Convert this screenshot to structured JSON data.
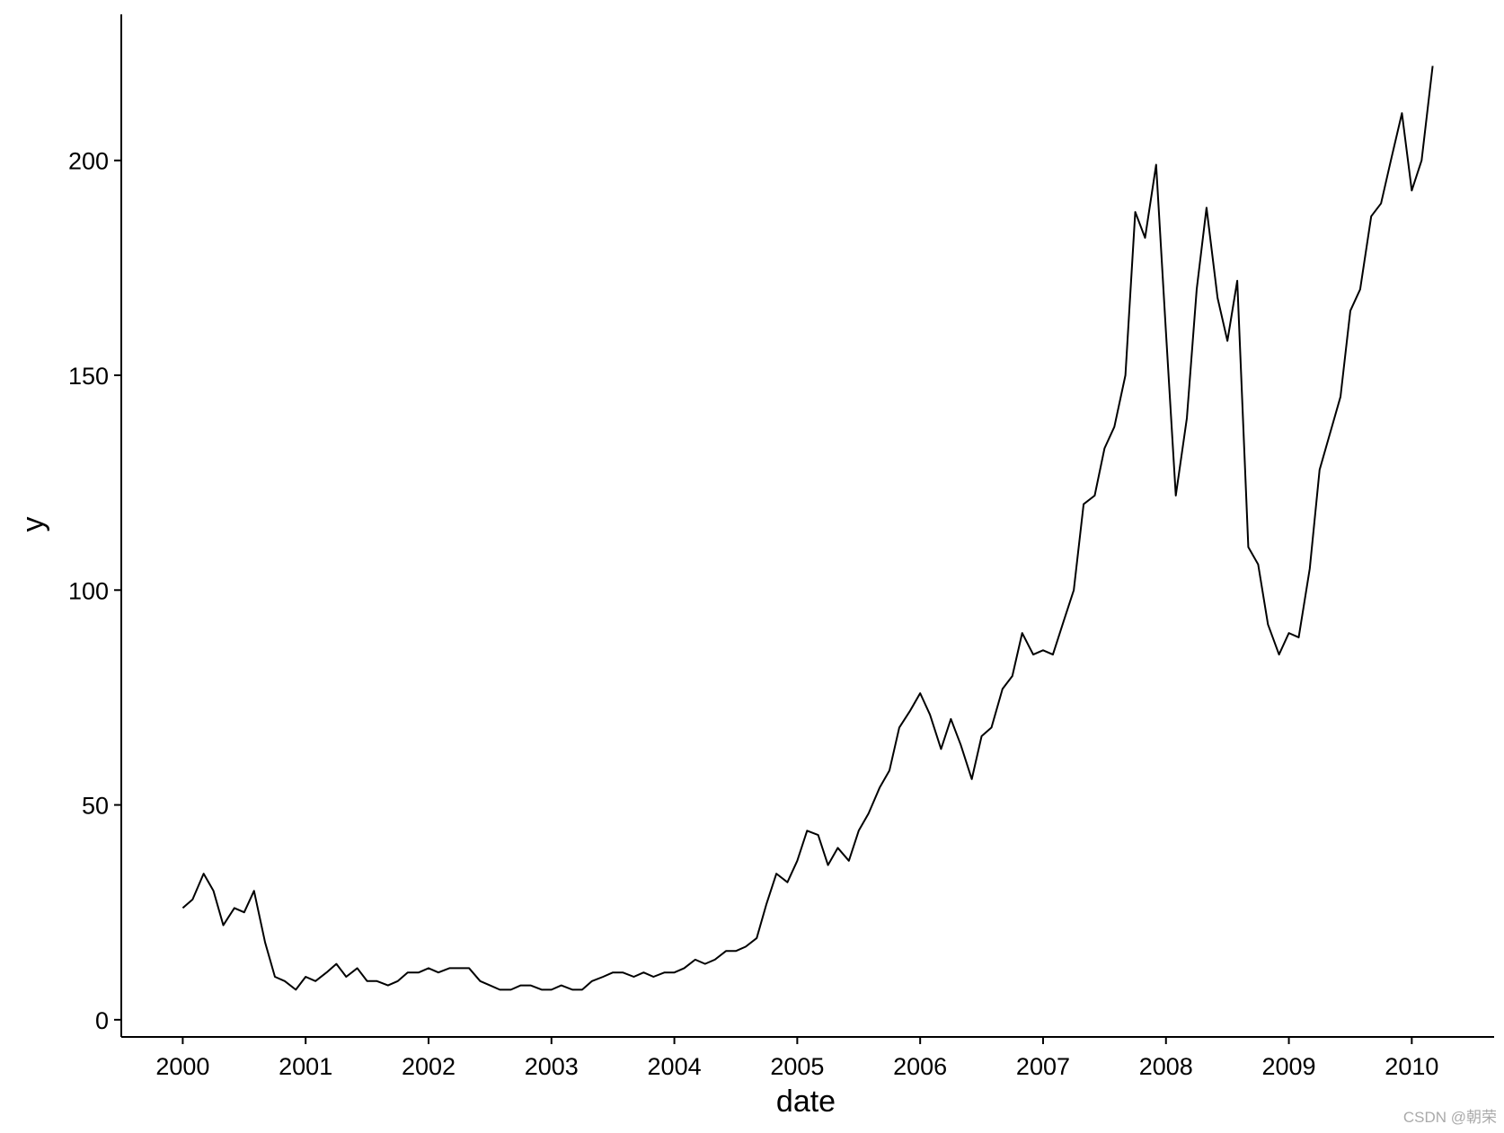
{
  "chart_data": {
    "type": "line",
    "x_label": "date",
    "y_label": "y",
    "watermark": "CSDN @朝荣",
    "xlim": [
      1999.5,
      2010.67
    ],
    "ylim": [
      -4,
      234
    ],
    "xticks": [
      2000,
      2001,
      2002,
      2003,
      2004,
      2005,
      2006,
      2007,
      2008,
      2009,
      2010
    ],
    "yticks": [
      0,
      50,
      100,
      150,
      200
    ],
    "grid": false,
    "x": [
      2000.0,
      2000.08,
      2000.17,
      2000.25,
      2000.33,
      2000.42,
      2000.5,
      2000.58,
      2000.67,
      2000.75,
      2000.83,
      2000.92,
      2001.0,
      2001.08,
      2001.17,
      2001.25,
      2001.33,
      2001.42,
      2001.5,
      2001.58,
      2001.67,
      2001.75,
      2001.83,
      2001.92,
      2002.0,
      2002.08,
      2002.17,
      2002.25,
      2002.33,
      2002.42,
      2002.5,
      2002.58,
      2002.67,
      2002.75,
      2002.83,
      2002.92,
      2003.0,
      2003.08,
      2003.17,
      2003.25,
      2003.33,
      2003.42,
      2003.5,
      2003.58,
      2003.67,
      2003.75,
      2003.83,
      2003.92,
      2004.0,
      2004.08,
      2004.17,
      2004.25,
      2004.33,
      2004.42,
      2004.5,
      2004.58,
      2004.67,
      2004.75,
      2004.83,
      2004.92,
      2005.0,
      2005.08,
      2005.17,
      2005.25,
      2005.33,
      2005.42,
      2005.5,
      2005.58,
      2005.67,
      2005.75,
      2005.83,
      2005.92,
      2006.0,
      2006.08,
      2006.17,
      2006.25,
      2006.33,
      2006.42,
      2006.5,
      2006.58,
      2006.67,
      2006.75,
      2006.83,
      2006.92,
      2007.0,
      2007.08,
      2007.17,
      2007.25,
      2007.33,
      2007.42,
      2007.5,
      2007.58,
      2007.67,
      2007.75,
      2007.83,
      2007.92,
      2008.0,
      2008.08,
      2008.17,
      2008.25,
      2008.33,
      2008.42,
      2008.5,
      2008.58,
      2008.67,
      2008.75,
      2008.83,
      2008.92,
      2009.0,
      2009.08,
      2009.17,
      2009.25,
      2009.33,
      2009.42,
      2009.5,
      2009.58,
      2009.67,
      2009.75,
      2009.83,
      2009.92,
      2010.0,
      2010.08,
      2010.17
    ],
    "series": [
      {
        "name": "y",
        "color": "#000000",
        "values": [
          26,
          28,
          34,
          30,
          22,
          26,
          25,
          30,
          18,
          10,
          9,
          7,
          10,
          9,
          11,
          13,
          10,
          12,
          9,
          9,
          8,
          9,
          11,
          11,
          12,
          11,
          12,
          12,
          12,
          9,
          8,
          7,
          7,
          8,
          8,
          7,
          7,
          8,
          7,
          7,
          9,
          10,
          11,
          11,
          10,
          11,
          10,
          11,
          11,
          12,
          14,
          13,
          14,
          16,
          16,
          17,
          19,
          27,
          34,
          32,
          37,
          44,
          43,
          36,
          40,
          37,
          44,
          48,
          54,
          58,
          68,
          72,
          76,
          71,
          63,
          70,
          64,
          56,
          66,
          68,
          77,
          80,
          90,
          85,
          86,
          85,
          93,
          100,
          120,
          122,
          133,
          138,
          150,
          188,
          182,
          199,
          160,
          122,
          140,
          170,
          189,
          168,
          158,
          172,
          110,
          106,
          92,
          85,
          90,
          89,
          105,
          128,
          136,
          145,
          165,
          170,
          187,
          190,
          200,
          211,
          193,
          200,
          222
        ]
      }
    ]
  }
}
